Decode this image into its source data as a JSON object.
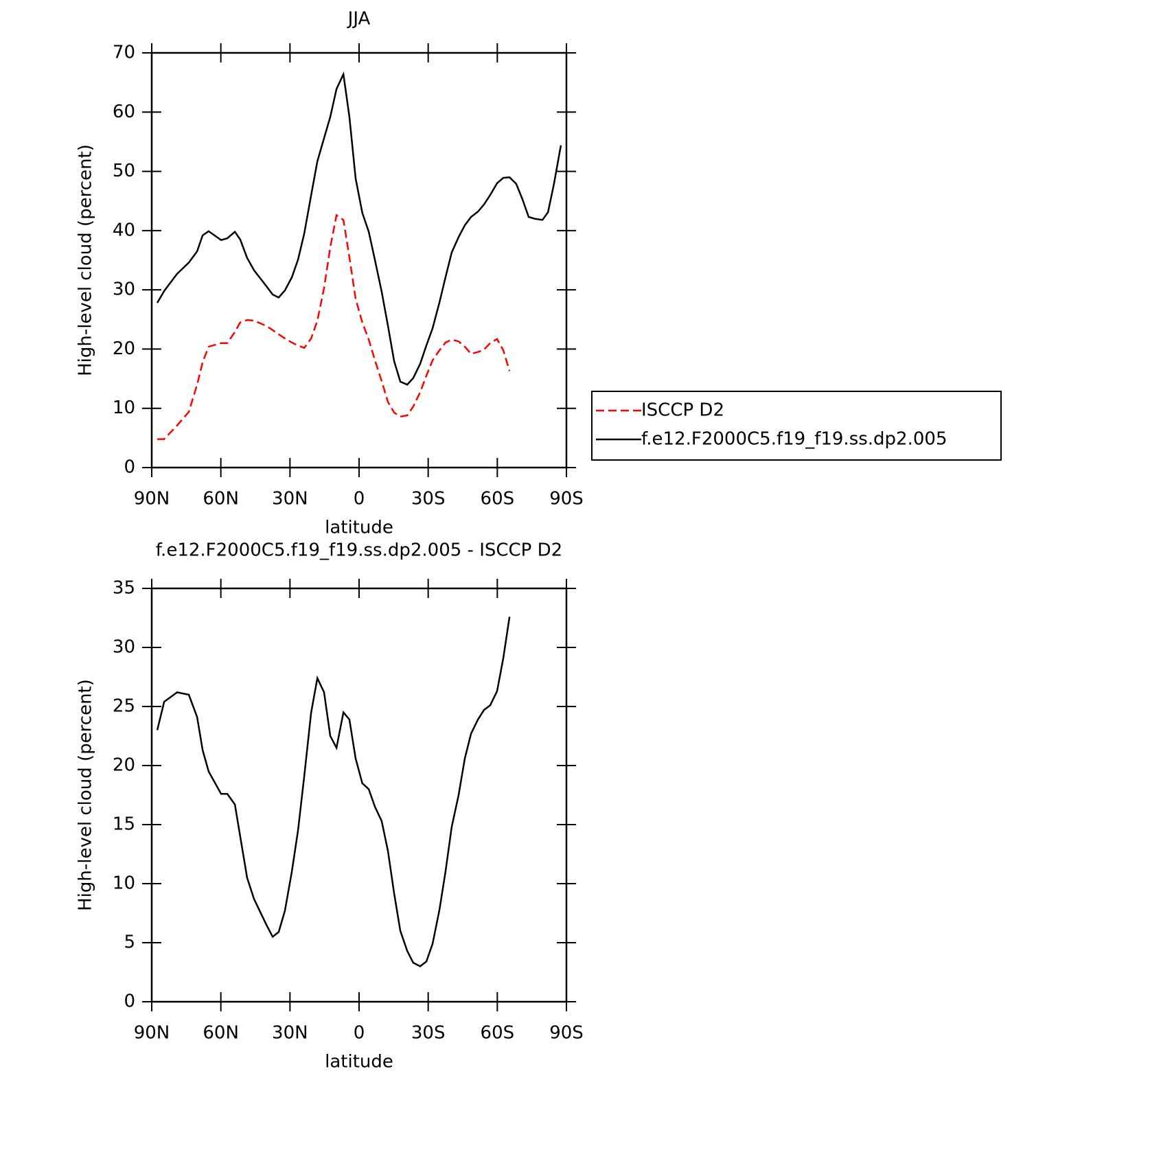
{
  "chart_data": [
    {
      "type": "line",
      "title": "JJA",
      "xlabel": "latitude",
      "ylabel": "High-level cloud (percent)",
      "x": [
        87.6,
        84.6,
        79.0,
        73.9,
        70.3,
        67.9,
        65.3,
        59.9,
        57.2,
        53.9,
        51.6,
        48.6,
        45.6,
        40.2,
        37.5,
        34.9,
        32.2,
        29.2,
        26.5,
        23.8,
        20.8,
        18.1,
        15.2,
        12.5,
        9.8,
        6.8,
        4.2,
        1.5,
        -1.4,
        -4.2,
        -6.9,
        -9.8,
        -12.5,
        -15.2,
        -17.9,
        -20.9,
        -23.5,
        -26.5,
        -29.2,
        -31.9,
        -34.9,
        -37.5,
        -40.2,
        -43.2,
        -45.9,
        -48.6,
        -51.6,
        -54.2,
        -56.9,
        -59.9,
        -62.6,
        -65.3,
        -68.2,
        -70.9,
        -73.6,
        -76.3,
        -79.6,
        -82.0,
        -84.6,
        -87.6
      ],
      "series": [
        {
          "name": "ISCCP D2",
          "color": "#ff0000",
          "style": "dashed",
          "values": [
            4.8,
            4.8,
            7.1,
            9.4,
            14.0,
            17.8,
            20.4,
            21.0,
            21.0,
            22.9,
            24.5,
            24.9,
            24.8,
            23.9,
            23.2,
            22.5,
            21.8,
            21.1,
            20.6,
            20.2,
            21.8,
            24.8,
            30.3,
            37.2,
            42.6,
            41.8,
            35.5,
            28.5,
            24.5,
            21.6,
            18.1,
            14.6,
            11.1,
            9.3,
            8.6,
            8.8,
            10.3,
            12.7,
            15.5,
            18.1,
            19.8,
            21.1,
            21.6,
            21.3,
            20.4,
            19.2,
            19.5,
            19.9,
            21.0,
            21.7,
            19.8,
            16.3,
            null,
            null,
            null,
            null,
            null,
            null,
            null,
            null
          ]
        },
        {
          "name": "f.e12.F2000C5.f19_f19.ss.dp2.005",
          "color": "#000000",
          "style": "solid",
          "values": [
            27.8,
            29.8,
            32.7,
            34.6,
            36.5,
            39.2,
            39.9,
            38.4,
            38.7,
            39.8,
            38.5,
            35.4,
            33.3,
            30.6,
            29.2,
            28.7,
            29.9,
            32.1,
            35.1,
            39.5,
            46.0,
            51.7,
            55.6,
            59.2,
            63.9,
            66.4,
            59.2,
            48.8,
            43.0,
            39.8,
            35.0,
            29.7,
            24.0,
            18.0,
            14.5,
            14.0,
            15.1,
            17.5,
            20.6,
            23.5,
            27.9,
            32.1,
            36.3,
            38.9,
            40.9,
            42.3,
            43.2,
            44.4,
            46.0,
            48.0,
            48.9,
            49.0,
            47.9,
            45.3,
            42.3,
            42.0,
            41.8,
            43.1,
            47.9,
            54.4
          ]
        }
      ],
      "xlim": [
        90,
        -90
      ],
      "xticks": [
        {
          "value": 90,
          "label": "90N"
        },
        {
          "value": 60,
          "label": "60N"
        },
        {
          "value": 30,
          "label": "30N"
        },
        0,
        {
          "value": -30,
          "label": "30S"
        },
        {
          "value": -60,
          "label": "60S"
        },
        {
          "value": -90,
          "label": "90S"
        }
      ],
      "ylim": [
        0,
        70
      ],
      "yticks": [
        0,
        10,
        20,
        30,
        40,
        50,
        60,
        70
      ],
      "legend": "right"
    },
    {
      "type": "line",
      "title": "f.e12.F2000C5.f19_f19.ss.dp2.005 - ISCCP D2",
      "xlabel": "latitude",
      "ylabel": "High-level cloud (percent)",
      "x": [
        87.6,
        84.6,
        79.0,
        73.9,
        70.3,
        67.9,
        65.3,
        59.9,
        57.2,
        53.9,
        51.6,
        48.6,
        45.6,
        40.2,
        37.5,
        34.9,
        32.2,
        29.2,
        26.5,
        23.8,
        20.8,
        18.1,
        15.2,
        12.5,
        9.8,
        6.8,
        4.2,
        1.5,
        -1.4,
        -4.2,
        -6.9,
        -9.8,
        -12.5,
        -15.2,
        -17.9,
        -20.9,
        -23.5,
        -26.5,
        -29.2,
        -31.9,
        -34.9,
        -37.5,
        -40.2,
        -43.2,
        -45.9,
        -48.6,
        -51.6,
        -54.2,
        -56.9,
        -59.9,
        -62.6,
        -65.3,
        -68.2,
        -70.9,
        -73.6,
        -76.3,
        -79.6,
        -82.0,
        -84.6,
        -87.6
      ],
      "series": [
        {
          "color": "#000000",
          "style": "solid",
          "values": [
            23.0,
            25.4,
            26.2,
            26.0,
            24.1,
            21.3,
            19.5,
            17.6,
            17.6,
            16.7,
            14.0,
            10.5,
            8.7,
            6.5,
            5.5,
            5.9,
            7.7,
            11.0,
            14.5,
            19.1,
            24.5,
            27.4,
            26.2,
            22.5,
            21.5,
            24.5,
            23.9,
            20.6,
            18.5,
            18.0,
            16.5,
            15.3,
            12.8,
            9.2,
            6.0,
            4.3,
            3.3,
            3.0,
            3.4,
            4.9,
            7.8,
            11.0,
            14.8,
            17.5,
            20.6,
            22.7,
            23.9,
            24.7,
            25.1,
            26.3,
            29.1,
            32.6,
            null,
            null,
            null,
            null,
            null,
            null,
            null,
            null
          ]
        }
      ],
      "xlim": [
        90,
        -90
      ],
      "xticks": [
        {
          "value": 90,
          "label": "90N"
        },
        {
          "value": 60,
          "label": "60N"
        },
        {
          "value": 30,
          "label": "30N"
        },
        0,
        {
          "value": -30,
          "label": "30S"
        },
        {
          "value": -60,
          "label": "60S"
        },
        {
          "value": -90,
          "label": "90S"
        }
      ],
      "ylim": [
        0,
        35
      ],
      "yticks": [
        0,
        5,
        10,
        15,
        20,
        25,
        30,
        35
      ]
    }
  ]
}
